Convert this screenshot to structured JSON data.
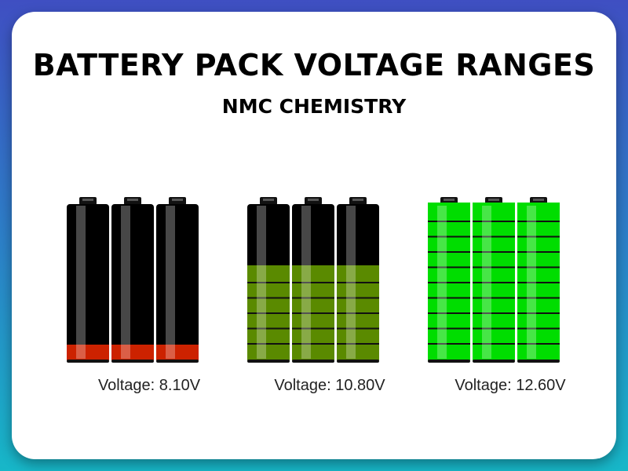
{
  "title": "BATTERY PACK VOLTAGE RANGES",
  "subtitle": "NMC CHEMISTRY",
  "packs": [
    {
      "label": "Voltage: 8.10V",
      "charge_level": 0.1,
      "fill_color": "#cc2200",
      "cells": 3
    },
    {
      "label": "Voltage: 10.80V",
      "charge_level": 0.6,
      "fill_color": "#5a8a00",
      "cells": 3
    },
    {
      "label": "Voltage: 12.60V",
      "charge_level": 1.0,
      "fill_color": "#00dd00",
      "cells": 3
    }
  ],
  "colors": {
    "background_top": "#3f4fc2",
    "background_bottom": "#17b7c8",
    "card": "#ffffff",
    "empty_cell": "#000000"
  }
}
